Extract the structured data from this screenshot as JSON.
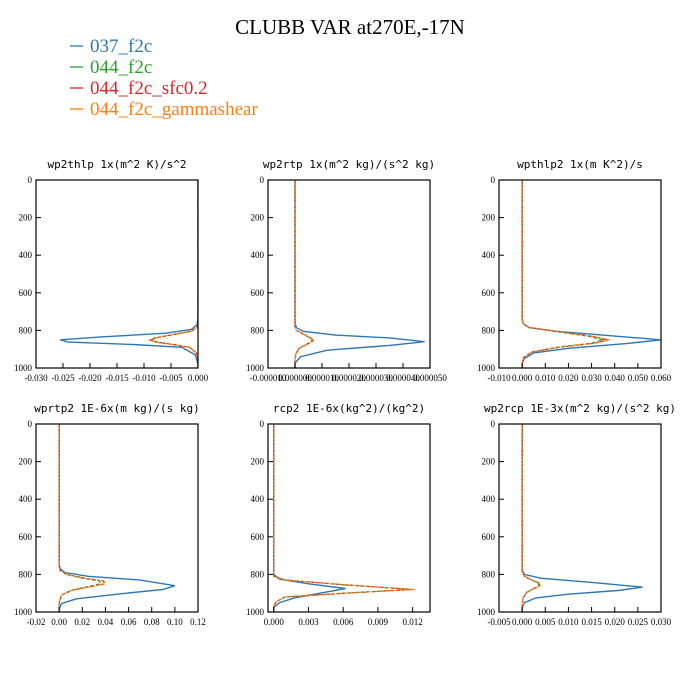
{
  "figure_title": "CLUBB VAR at270E,-17N",
  "legend": [
    {
      "label": "037_f2c",
      "color": "#2e77b5"
    },
    {
      "label": "044_f2c",
      "color": "#2ca02c"
    },
    {
      "label": "044_f2c_sfc0.2",
      "color": "#d62728"
    },
    {
      "label": "044_f2c_gammashear",
      "color": "#ff7f0e"
    }
  ],
  "chart_data": [
    {
      "type": "line",
      "title": "wp2thlp   1x(m^2 K)/s^2",
      "xlim": [
        -0.03,
        0.0
      ],
      "ylim": [
        1000,
        0
      ],
      "xticks": [
        "-0.030",
        "-0.025",
        "-0.020",
        "-0.015",
        "-0.010",
        "-0.005",
        "0.000"
      ],
      "xtick_values": [
        -0.03,
        -0.025,
        -0.02,
        -0.015,
        -0.01,
        -0.005,
        0.0
      ],
      "yticks": [
        0,
        200,
        400,
        600,
        800,
        1000
      ],
      "series": [
        {
          "color": "#2e77b5",
          "x": [
            0,
            0,
            -0.0002,
            -0.0012,
            -0.006,
            -0.018,
            -0.0255,
            -0.024,
            -0.012,
            -0.003,
            -0.0005,
            0,
            0
          ],
          "y": [
            0,
            740,
            770,
            795,
            815,
            835,
            850,
            862,
            875,
            890,
            930,
            980,
            1000
          ]
        },
        {
          "color": "#2ca02c",
          "x": [
            0,
            0,
            -0.0002,
            -0.0012,
            -0.005,
            -0.0078,
            -0.0085,
            -0.0075,
            -0.0045,
            -0.0015,
            -0.0003,
            0,
            0
          ],
          "y": [
            0,
            760,
            785,
            805,
            825,
            840,
            852,
            862,
            875,
            890,
            920,
            960,
            1000
          ]
        },
        {
          "color": "#d62728",
          "x": [
            0,
            0,
            -0.0002,
            -0.0013,
            -0.0052,
            -0.0081,
            -0.0088,
            -0.0078,
            -0.0047,
            -0.0016,
            -0.0003,
            0,
            0
          ],
          "y": [
            0,
            760,
            785,
            805,
            825,
            840,
            852,
            862,
            875,
            890,
            920,
            960,
            1000
          ]
        },
        {
          "color": "#ff7f0e",
          "x": [
            0,
            0,
            -0.0002,
            -0.0013,
            -0.0053,
            -0.0082,
            -0.009,
            -0.008,
            -0.0048,
            -0.0016,
            -0.0003,
            0,
            0
          ],
          "y": [
            0,
            760,
            785,
            805,
            825,
            840,
            852,
            862,
            875,
            890,
            920,
            960,
            1000
          ]
        }
      ]
    },
    {
      "type": "line",
      "title": "wp2rtp   1x(m^2 kg)/(s^2 kg)",
      "xlim": [
        -1e-05,
        5e-05
      ],
      "ylim": [
        1000,
        0
      ],
      "xticks": [
        "-0.000010",
        "0.000000",
        "0.000010",
        "0.000020",
        "0.000030",
        "0.000040",
        "0.000050"
      ],
      "xtick_values": [
        -1e-05,
        0.0,
        1e-05,
        2e-05,
        3e-05,
        4e-05,
        5e-05
      ],
      "yticks": [
        0,
        200,
        400,
        600,
        800,
        1000
      ],
      "series": [
        {
          "color": "#2e77b5",
          "x": [
            0,
            0,
            5e-07,
            3e-06,
            1.5e-05,
            3.5e-05,
            4.8e-05,
            3.5e-05,
            1.2e-05,
            2e-06,
            0,
            0
          ],
          "y": [
            0,
            760,
            785,
            805,
            825,
            840,
            860,
            880,
            905,
            940,
            975,
            1000
          ]
        },
        {
          "color": "#2ca02c",
          "x": [
            0,
            0,
            5e-07,
            3e-06,
            5.5e-06,
            6.5e-06,
            4.5e-06,
            1.5e-06,
            3e-07,
            0,
            0
          ],
          "y": [
            0,
            780,
            800,
            820,
            840,
            855,
            872,
            895,
            925,
            960,
            1000
          ]
        },
        {
          "color": "#d62728",
          "x": [
            0,
            0,
            5e-07,
            3.2e-06,
            5.8e-06,
            6.8e-06,
            4.7e-06,
            1.6e-06,
            3e-07,
            0,
            0
          ],
          "y": [
            0,
            780,
            800,
            820,
            840,
            855,
            872,
            895,
            925,
            960,
            1000
          ]
        },
        {
          "color": "#ff7f0e",
          "x": [
            0,
            0,
            5e-07,
            3.3e-06,
            6e-06,
            7e-06,
            4.8e-06,
            1.6e-06,
            3e-07,
            0,
            0
          ],
          "y": [
            0,
            780,
            800,
            820,
            840,
            855,
            872,
            895,
            925,
            960,
            1000
          ]
        }
      ]
    },
    {
      "type": "line",
      "title": "wpthlp2   1x(m K^2)/s",
      "xlim": [
        -0.01,
        0.06
      ],
      "ylim": [
        1000,
        0
      ],
      "xticks": [
        "-0.010",
        "0.000",
        "0.010",
        "0.020",
        "0.030",
        "0.040",
        "0.050",
        "0.060"
      ],
      "xtick_values": [
        -0.01,
        0.0,
        0.01,
        0.02,
        0.03,
        0.04,
        0.05,
        0.06
      ],
      "yticks": [
        0,
        200,
        400,
        600,
        800,
        1000
      ],
      "series": [
        {
          "color": "#2e77b5",
          "x": [
            0,
            0,
            0.0005,
            0.003,
            0.015,
            0.04,
            0.06,
            0.045,
            0.02,
            0.005,
            0.0008,
            0,
            0
          ],
          "y": [
            0,
            740,
            765,
            785,
            805,
            830,
            850,
            870,
            895,
            920,
            950,
            980,
            1000
          ]
        },
        {
          "color": "#2ca02c",
          "x": [
            0,
            0,
            0.0005,
            0.003,
            0.014,
            0.028,
            0.035,
            0.03,
            0.015,
            0.004,
            0.0006,
            0,
            0
          ],
          "y": [
            0,
            740,
            765,
            785,
            805,
            830,
            850,
            868,
            890,
            915,
            945,
            975,
            1000
          ]
        },
        {
          "color": "#d62728",
          "x": [
            0,
            0,
            0.0005,
            0.0032,
            0.0148,
            0.0295,
            0.037,
            0.0315,
            0.0158,
            0.0042,
            0.0006,
            0,
            0
          ],
          "y": [
            0,
            740,
            765,
            785,
            805,
            830,
            850,
            868,
            890,
            915,
            945,
            975,
            1000
          ]
        },
        {
          "color": "#ff7f0e",
          "x": [
            0,
            0,
            0.0005,
            0.0033,
            0.015,
            0.03,
            0.038,
            0.032,
            0.016,
            0.0043,
            0.0006,
            0,
            0
          ],
          "y": [
            0,
            740,
            765,
            785,
            805,
            830,
            850,
            868,
            890,
            915,
            945,
            975,
            1000
          ]
        }
      ]
    },
    {
      "type": "line",
      "title": "wprtp2   1E-6x(m kg)/(s kg)",
      "xlim": [
        -0.02,
        0.12
      ],
      "ylim": [
        1000,
        0
      ],
      "xticks": [
        "-0.02",
        "0.00",
        "0.02",
        "0.04",
        "0.06",
        "0.08",
        "0.10",
        "0.12"
      ],
      "xtick_values": [
        -0.02,
        0.0,
        0.02,
        0.04,
        0.06,
        0.08,
        0.1,
        0.12
      ],
      "yticks": [
        0,
        200,
        400,
        600,
        800,
        1000
      ],
      "series": [
        {
          "color": "#2e77b5",
          "x": [
            0,
            0,
            0.001,
            0.005,
            0.025,
            0.07,
            0.1,
            0.09,
            0.05,
            0.015,
            0.002,
            0,
            0
          ],
          "y": [
            0,
            750,
            770,
            790,
            810,
            830,
            860,
            880,
            905,
            930,
            955,
            985,
            1000
          ]
        },
        {
          "color": "#2ca02c",
          "x": [
            0,
            0,
            0.001,
            0.006,
            0.02,
            0.035,
            0.036,
            0.025,
            0.01,
            0.002,
            0,
            0
          ],
          "y": [
            0,
            760,
            780,
            800,
            820,
            835,
            850,
            865,
            885,
            910,
            950,
            1000
          ]
        },
        {
          "color": "#d62728",
          "x": [
            0,
            0,
            0.001,
            0.0065,
            0.022,
            0.038,
            0.039,
            0.027,
            0.011,
            0.002,
            0,
            0
          ],
          "y": [
            0,
            760,
            780,
            800,
            820,
            835,
            850,
            865,
            885,
            910,
            950,
            1000
          ]
        },
        {
          "color": "#ff7f0e",
          "x": [
            0,
            0,
            0.001,
            0.0065,
            0.022,
            0.039,
            0.04,
            0.028,
            0.011,
            0.002,
            0,
            0
          ],
          "y": [
            0,
            760,
            780,
            800,
            820,
            835,
            850,
            865,
            885,
            910,
            950,
            1000
          ]
        }
      ]
    },
    {
      "type": "line",
      "title": "rcp2   1E-6x(kg^2)/(kg^2)",
      "xlim": [
        -0.0005,
        0.0135
      ],
      "ylim": [
        1000,
        0
      ],
      "xticks": [
        "0.000",
        "0.003",
        "0.006",
        "0.009",
        "0.012"
      ],
      "xtick_values": [
        0.0,
        0.003,
        0.006,
        0.009,
        0.012
      ],
      "yticks": [
        0,
        200,
        400,
        600,
        800,
        1000
      ],
      "series": [
        {
          "color": "#2e77b5",
          "x": [
            0,
            0,
            0.0005,
            0.003,
            0.0062,
            0.004,
            0.0018,
            0.0005,
            0,
            0
          ],
          "y": [
            0,
            800,
            825,
            850,
            875,
            900,
            925,
            950,
            975,
            1000
          ]
        },
        {
          "color": "#2ca02c",
          "x": [
            0,
            0,
            0.001,
            0.006,
            0.0118,
            0.006,
            0.001,
            0.0002,
            0,
            0
          ],
          "y": [
            0,
            810,
            830,
            855,
            880,
            900,
            920,
            945,
            970,
            1000
          ]
        },
        {
          "color": "#d62728",
          "x": [
            0,
            0,
            0.001,
            0.006,
            0.012,
            0.0062,
            0.001,
            0.0002,
            0,
            0
          ],
          "y": [
            0,
            810,
            830,
            855,
            880,
            900,
            920,
            945,
            970,
            1000
          ]
        },
        {
          "color": "#ff7f0e",
          "x": [
            0,
            0,
            0.001,
            0.0062,
            0.0122,
            0.0063,
            0.001,
            0.0002,
            0,
            0
          ],
          "y": [
            0,
            810,
            830,
            855,
            880,
            900,
            920,
            945,
            970,
            1000
          ]
        }
      ]
    },
    {
      "type": "line",
      "title": "wp2rcp   1E-3x(m^2 kg)/(s^2 kg)",
      "xlim": [
        -0.005,
        0.03
      ],
      "ylim": [
        1000,
        0
      ],
      "xticks": [
        "-0.005",
        "0.000",
        "0.005",
        "0.010",
        "0.015",
        "0.020",
        "0.025",
        "0.030"
      ],
      "xtick_values": [
        -0.005,
        0.0,
        0.005,
        0.01,
        0.015,
        0.02,
        0.025,
        0.03
      ],
      "yticks": [
        0,
        200,
        400,
        600,
        800,
        1000
      ],
      "series": [
        {
          "color": "#2e77b5",
          "x": [
            0,
            0,
            0.0005,
            0.004,
            0.016,
            0.026,
            0.021,
            0.01,
            0.003,
            0.0005,
            0,
            0
          ],
          "y": [
            0,
            780,
            800,
            820,
            845,
            868,
            885,
            905,
            925,
            950,
            975,
            1000
          ]
        },
        {
          "color": "#2ca02c",
          "x": [
            0,
            0,
            0.0005,
            0.002,
            0.0034,
            0.0036,
            0.0025,
            0.001,
            0.0002,
            0,
            0
          ],
          "y": [
            0,
            790,
            810,
            830,
            845,
            860,
            875,
            895,
            925,
            960,
            1000
          ]
        },
        {
          "color": "#d62728",
          "x": [
            0,
            0,
            0.0005,
            0.0021,
            0.0036,
            0.0038,
            0.0026,
            0.001,
            0.0002,
            0,
            0
          ],
          "y": [
            0,
            790,
            810,
            830,
            845,
            860,
            875,
            895,
            925,
            960,
            1000
          ]
        },
        {
          "color": "#ff7f0e",
          "x": [
            0,
            0,
            0.0005,
            0.0022,
            0.0037,
            0.0039,
            0.0027,
            0.0011,
            0.0002,
            0,
            0
          ],
          "y": [
            0,
            790,
            810,
            830,
            845,
            860,
            875,
            895,
            925,
            960,
            1000
          ]
        }
      ]
    }
  ]
}
